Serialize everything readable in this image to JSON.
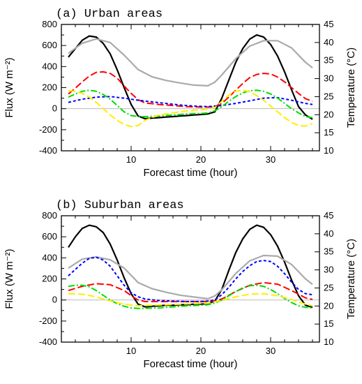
{
  "chart_data": [
    {
      "type": "line",
      "title": "(a) Urban areas",
      "xlabel": "Forecast time (hour)",
      "ylabel": "Flux (W m⁻²)",
      "y2label": "Temperature (°C)",
      "xlim": [
        0,
        37
      ],
      "ylim": [
        -400,
        800
      ],
      "y2lim": [
        10,
        45
      ],
      "xticks": [
        "10",
        "20",
        "30"
      ],
      "yticks": [
        "-400",
        "-200",
        "0",
        "200",
        "400",
        "600",
        "800"
      ],
      "y2ticks": [
        "10",
        "15",
        "20",
        "25",
        "30",
        "35",
        "40",
        "45"
      ],
      "zero_line": true,
      "series": [
        {
          "color": "#000000",
          "dash": "solid",
          "axis": "left",
          "x": [
            1,
            2,
            3,
            4,
            5,
            6,
            7,
            8,
            9,
            10,
            11,
            12,
            13,
            14,
            15,
            16,
            17,
            18,
            19,
            20,
            21,
            22,
            23,
            24,
            25,
            26,
            27,
            28,
            29,
            30,
            31,
            32,
            33,
            34,
            35,
            36
          ],
          "y": [
            490,
            570,
            650,
            690,
            680,
            620,
            520,
            370,
            200,
            40,
            -70,
            -95,
            -90,
            -85,
            -80,
            -75,
            -70,
            -65,
            -60,
            -55,
            -50,
            -30,
            100,
            270,
            440,
            570,
            660,
            700,
            680,
            610,
            500,
            350,
            180,
            20,
            -60,
            -100
          ]
        },
        {
          "color": "#aaaaaa",
          "dash": "solid",
          "axis": "right",
          "x": [
            1,
            3,
            5,
            7,
            9,
            11,
            13,
            15,
            17,
            19,
            21,
            22,
            23,
            25,
            27,
            29,
            31,
            33,
            35,
            36
          ],
          "y": [
            37.0,
            39.8,
            41.0,
            40.0,
            36.5,
            32.5,
            30.5,
            29.5,
            28.8,
            28.2,
            28.0,
            29.0,
            31.0,
            35.5,
            39.0,
            40.5,
            40.5,
            38.5,
            34.5,
            33.0
          ]
        },
        {
          "color": "#ff0000",
          "dash": "long",
          "axis": "left",
          "x": [
            1,
            2,
            3,
            4,
            5,
            6,
            7,
            8,
            9,
            10,
            11,
            12,
            14,
            16,
            18,
            20,
            21,
            22,
            23,
            24,
            25,
            26,
            27,
            28,
            29,
            30,
            31,
            32,
            33,
            34,
            35,
            36
          ],
          "y": [
            140,
            195,
            255,
            310,
            345,
            350,
            335,
            290,
            215,
            145,
            85,
            55,
            40,
            30,
            20,
            15,
            15,
            20,
            50,
            110,
            175,
            240,
            295,
            325,
            335,
            330,
            300,
            255,
            200,
            145,
            95,
            70
          ]
        },
        {
          "color": "#0000ff",
          "dash": "short",
          "axis": "left",
          "x": [
            1,
            3,
            5,
            7,
            9,
            11,
            13,
            15,
            17,
            19,
            21,
            23,
            25,
            27,
            29,
            31,
            33,
            35,
            36
          ],
          "y": [
            60,
            90,
            110,
            115,
            100,
            80,
            65,
            50,
            35,
            25,
            20,
            30,
            50,
            75,
            100,
            105,
            80,
            50,
            40
          ]
        },
        {
          "color": "#00dd00",
          "dash": "dashdot",
          "axis": "left",
          "x": [
            1,
            2,
            3,
            4,
            5,
            6,
            7,
            8,
            9,
            10,
            11,
            12,
            14,
            16,
            18,
            20,
            21,
            22,
            23,
            24,
            25,
            26,
            27,
            28,
            29,
            30,
            31,
            32,
            33,
            34,
            35,
            36
          ],
          "y": [
            110,
            140,
            165,
            175,
            165,
            135,
            90,
            30,
            -30,
            -65,
            -75,
            -75,
            -70,
            -60,
            -50,
            -45,
            -40,
            -20,
            20,
            70,
            115,
            150,
            170,
            175,
            165,
            140,
            100,
            50,
            0,
            -40,
            -75,
            -85
          ]
        },
        {
          "color": "#ffee00",
          "dash": "long",
          "axis": "left",
          "x": [
            1,
            2,
            3,
            4,
            5,
            6,
            7,
            8,
            9,
            10,
            11,
            12,
            14,
            16,
            18,
            20,
            21,
            22,
            23,
            24,
            25,
            26,
            27,
            28,
            29,
            30,
            31,
            32,
            33,
            34,
            35,
            36
          ],
          "y": [
            170,
            165,
            145,
            110,
            60,
            0,
            -60,
            -110,
            -150,
            -170,
            -160,
            -110,
            -60,
            -40,
            -20,
            -10,
            -5,
            10,
            70,
            130,
            165,
            175,
            160,
            125,
            80,
            25,
            -30,
            -85,
            -130,
            -160,
            -165,
            -140
          ]
        }
      ]
    },
    {
      "type": "line",
      "title": "(b) Suburban areas",
      "xlabel": "Forecast time (hour)",
      "ylabel": "Flux (W m⁻²)",
      "y2label": "Temperature (°C)",
      "xlim": [
        0,
        37
      ],
      "ylim": [
        -400,
        800
      ],
      "y2lim": [
        10,
        45
      ],
      "xticks": [
        "10",
        "20",
        "30"
      ],
      "yticks": [
        "-400",
        "-200",
        "0",
        "200",
        "400",
        "600",
        "800"
      ],
      "y2ticks": [
        "10",
        "15",
        "20",
        "25",
        "30",
        "35",
        "40",
        "45"
      ],
      "zero_line": true,
      "series": [
        {
          "color": "#000000",
          "dash": "solid",
          "axis": "left",
          "x": [
            1,
            2,
            3,
            4,
            5,
            6,
            7,
            8,
            9,
            10,
            11,
            12,
            13,
            14,
            15,
            16,
            17,
            18,
            19,
            20,
            21,
            22,
            23,
            24,
            25,
            26,
            27,
            28,
            29,
            30,
            31,
            32,
            33,
            34,
            35,
            36
          ],
          "y": [
            500,
            600,
            680,
            710,
            695,
            640,
            530,
            380,
            210,
            60,
            -40,
            -65,
            -60,
            -55,
            -50,
            -50,
            -45,
            -45,
            -40,
            -40,
            -35,
            -10,
            100,
            280,
            450,
            580,
            670,
            710,
            690,
            620,
            510,
            360,
            190,
            40,
            -50,
            -70
          ]
        },
        {
          "color": "#aaaaaa",
          "dash": "solid",
          "axis": "right",
          "x": [
            1,
            3,
            5,
            7,
            9,
            11,
            13,
            15,
            17,
            19,
            21,
            22,
            23,
            25,
            27,
            29,
            31,
            33,
            35,
            36
          ],
          "y": [
            30.5,
            33.0,
            33.6,
            32.8,
            30.5,
            26.5,
            24.8,
            23.8,
            23.0,
            22.5,
            22.0,
            22.8,
            24.5,
            29.0,
            32.5,
            34.0,
            33.8,
            31.5,
            27.5,
            26.0
          ]
        },
        {
          "color": "#ff0000",
          "dash": "long",
          "axis": "left",
          "x": [
            1,
            3,
            5,
            7,
            9,
            10,
            11,
            12,
            14,
            16,
            18,
            20,
            21,
            22,
            23,
            25,
            27,
            29,
            31,
            33,
            35,
            36
          ],
          "y": [
            90,
            130,
            155,
            145,
            90,
            40,
            0,
            -15,
            -15,
            -15,
            -15,
            -15,
            -15,
            -10,
            10,
            80,
            140,
            165,
            150,
            90,
            20,
            5
          ]
        },
        {
          "color": "#0000ff",
          "dash": "short",
          "axis": "left",
          "x": [
            1,
            2,
            3,
            4,
            5,
            6,
            7,
            8,
            9,
            10,
            11,
            12,
            14,
            16,
            18,
            20,
            21,
            22,
            23,
            24,
            25,
            26,
            27,
            28,
            29,
            30,
            31,
            32,
            33,
            34,
            35,
            36
          ],
          "y": [
            230,
            290,
            350,
            395,
            405,
            380,
            320,
            230,
            140,
            70,
            30,
            10,
            -5,
            -10,
            -15,
            -15,
            -10,
            0,
            50,
            120,
            200,
            270,
            325,
            365,
            375,
            365,
            320,
            250,
            170,
            100,
            60,
            50
          ]
        },
        {
          "color": "#00dd00",
          "dash": "dashdot",
          "axis": "left",
          "x": [
            1,
            2,
            3,
            4,
            5,
            6,
            7,
            8,
            9,
            10,
            11,
            12,
            14,
            16,
            18,
            20,
            21,
            22,
            23,
            24,
            25,
            26,
            27,
            28,
            29,
            30,
            31,
            32,
            33,
            34,
            35,
            36
          ],
          "y": [
            130,
            140,
            140,
            125,
            90,
            45,
            0,
            -35,
            -60,
            -75,
            -80,
            -80,
            -75,
            -65,
            -55,
            -50,
            -45,
            -30,
            0,
            40,
            80,
            115,
            135,
            140,
            130,
            100,
            60,
            15,
            -25,
            -55,
            -70,
            -75
          ]
        },
        {
          "color": "#ffee00",
          "dash": "long",
          "axis": "left",
          "x": [
            1,
            3,
            5,
            7,
            9,
            11,
            13,
            15,
            17,
            19,
            21,
            23,
            25,
            27,
            29,
            31,
            33,
            35,
            36
          ],
          "y": [
            60,
            55,
            30,
            -10,
            -40,
            -55,
            -50,
            -45,
            -40,
            -35,
            -30,
            -5,
            30,
            55,
            60,
            40,
            5,
            -40,
            -55
          ]
        }
      ]
    }
  ]
}
